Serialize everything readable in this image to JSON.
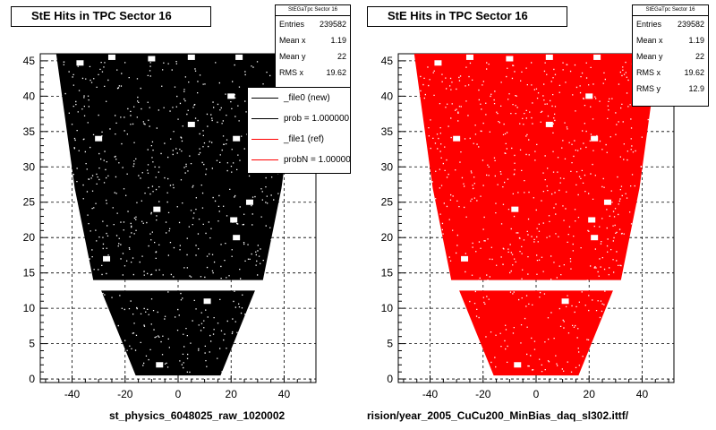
{
  "chart_data": [
    {
      "type": "scatter",
      "title": "StE Hits in TPC Sector 16",
      "color": "#000000",
      "xlim": [
        -52,
        52
      ],
      "ylim": [
        -0.5,
        46
      ],
      "xticks": [
        -40,
        -20,
        0,
        20,
        40
      ],
      "yticks": [
        0,
        5,
        10,
        15,
        20,
        25,
        30,
        35,
        40,
        45
      ],
      "grid": true,
      "stats": {
        "name": "StEGaTpc Sector 16",
        "rows": [
          {
            "label": "Entries",
            "value": "239582"
          },
          {
            "label": "Mean x",
            "value": "1.19"
          },
          {
            "label": "Mean y",
            "value": "22"
          },
          {
            "label": "RMS x",
            "value": "19.62"
          }
        ]
      },
      "legend": {
        "placement": "top-right",
        "entries": [
          {
            "label": "_file0 (new)",
            "color": "#000000"
          },
          {
            "label": "prob = 1.000000",
            "color": "#000000"
          },
          {
            "label": "_file1 (ref)",
            "color": "#ff0000"
          },
          {
            "label": "probN = 1.000000",
            "color": "#ff0000"
          }
        ]
      },
      "footer": "st_physics_6048025_raw_1020002"
    },
    {
      "type": "scatter",
      "title": "StE Hits in TPC Sector 16",
      "color": "#ff0000",
      "xlim": [
        -52,
        52
      ],
      "ylim": [
        -0.5,
        46
      ],
      "xticks": [
        -40,
        -20,
        0,
        20,
        40
      ],
      "yticks": [
        0,
        5,
        10,
        15,
        20,
        25,
        30,
        35,
        40,
        45
      ],
      "grid": true,
      "stats": {
        "name": "StEGaTpc Sector 16",
        "rows": [
          {
            "label": "Entries",
            "value": "239582"
          },
          {
            "label": "Mean x",
            "value": "1.19"
          },
          {
            "label": "Mean y",
            "value": "22"
          },
          {
            "label": "RMS x",
            "value": "19.62"
          },
          {
            "label": "RMS y",
            "value": "12.9"
          }
        ]
      },
      "footer": "rision/year_2005_CuCu200_MinBias_daq_sl302.ittf/"
    }
  ]
}
